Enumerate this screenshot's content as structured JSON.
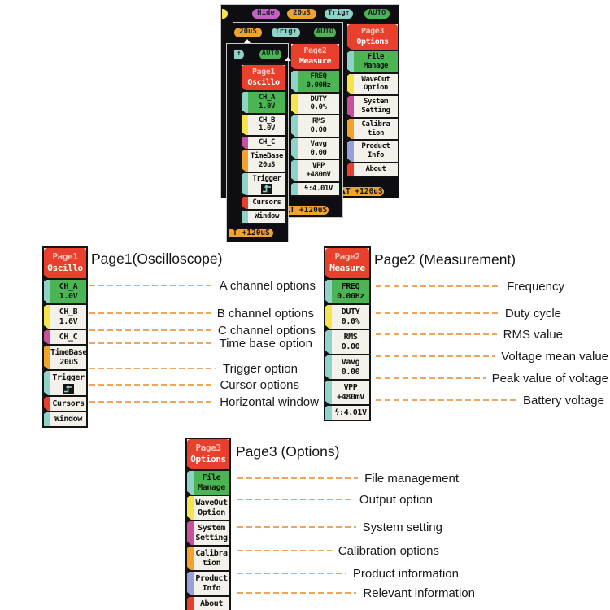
{
  "colors": {
    "red": "#e8402c",
    "green": "#4cb553",
    "teal": "#8fd2c8",
    "yellow": "#f4e44e",
    "magenta": "#c8509e",
    "orange": "#f2a22d",
    "blue": "#96a0dc",
    "pillMagenta": "#c75fc7",
    "headerText1": "#f8c6bc",
    "headerText2": "#ffffff",
    "dash": "#eda55f",
    "panelBg": "#0e0e12"
  },
  "toolbars": {
    "A": [
      {
        "label": "",
        "color": "yellow"
      },
      {
        "label": "Hide",
        "color": "pillMagenta"
      },
      {
        "label": "20uS",
        "color": "orange"
      },
      {
        "label": "Trig↑",
        "color": "teal"
      },
      {
        "label": "AUTO",
        "color": "green"
      }
    ],
    "B": [
      {
        "label": "20uS",
        "color": "orange"
      },
      {
        "label": "Trig↑",
        "color": "teal"
      },
      {
        "label": "AUTO",
        "color": "green"
      }
    ],
    "C": [
      {
        "label": "↑",
        "color": "teal"
      },
      {
        "label": "AUTO",
        "color": "green"
      }
    ]
  },
  "menus": {
    "page1": {
      "header_line1": "Page1",
      "header_line2": "Oscillo",
      "items": [
        {
          "lines": [
            "CH_A",
            "1.0V"
          ],
          "tab": "teal",
          "bg": "green"
        },
        {
          "lines": [
            "CH_B",
            "1.0V"
          ],
          "tab": "yellow",
          "bg": "white"
        },
        {
          "lines": [
            "CH_C"
          ],
          "tab": "magenta",
          "bg": "white"
        },
        {
          "lines": [
            "TimeBase",
            "20uS"
          ],
          "tab": "orange",
          "bg": "white"
        },
        {
          "lines": [
            "Trigger"
          ],
          "tab": "teal",
          "bg": "white",
          "icon": "trigger-edge-icon"
        },
        {
          "lines": [
            "Cursors"
          ],
          "tab": "red",
          "bg": "white"
        },
        {
          "lines": [
            "Window"
          ],
          "tab": "teal",
          "bg": "white"
        }
      ]
    },
    "page2": {
      "header_line1": "Page2",
      "header_line2": "Measure",
      "items": [
        {
          "lines": [
            "FREQ",
            "0.00Hz"
          ],
          "tab": "teal",
          "bg": "green"
        },
        {
          "lines": [
            "DUTY",
            "0.0%"
          ],
          "tab": "yellow",
          "bg": "white"
        },
        {
          "lines": [
            "RMS",
            "0.00"
          ],
          "tab": "teal",
          "bg": "white"
        },
        {
          "lines": [
            "Vavg",
            "0.00"
          ],
          "tab": "teal",
          "bg": "white"
        },
        {
          "lines": [
            "VPP",
            "+480mV"
          ],
          "tab": "teal",
          "bg": "white"
        },
        {
          "lines": [
            "ϟ:4.01V"
          ],
          "tab": "teal",
          "bg": "white"
        }
      ]
    },
    "page3": {
      "header_line1": "Page3",
      "header_line2": "Options",
      "items": [
        {
          "lines": [
            "File",
            "Manage"
          ],
          "tab": "teal",
          "bg": "green"
        },
        {
          "lines": [
            "WaveOut",
            "Option"
          ],
          "tab": "yellow",
          "bg": "white"
        },
        {
          "lines": [
            "System",
            "Setting"
          ],
          "tab": "magenta",
          "bg": "white"
        },
        {
          "lines": [
            "Calibra",
            "tion"
          ],
          "tab": "orange",
          "bg": "white"
        },
        {
          "lines": [
            "Product",
            "Info"
          ],
          "tab": "blue",
          "bg": "white"
        },
        {
          "lines": [
            "About"
          ],
          "tab": "red",
          "bg": "white"
        }
      ]
    }
  },
  "footers": {
    "full": "▲T +120uS",
    "cut": "T +120uS"
  },
  "sections": [
    {
      "title": "Page1(Oscilloscope)",
      "labels": [
        "A channel options",
        "B channel options",
        "C channel options",
        "Time base option",
        "Trigger option",
        "Cursor options",
        "Horizontal window"
      ]
    },
    {
      "title": "Page2 (Measurement)",
      "labels": [
        "Frequency",
        "Duty cycle",
        "RMS value",
        "Voltage mean value",
        "Peak value of voltage",
        "Battery voltage"
      ]
    },
    {
      "title": "Page3 (Options)",
      "labels": [
        "File management",
        "Output option",
        "System setting",
        "Calibration options",
        "Product information",
        "Relevant information"
      ]
    }
  ]
}
